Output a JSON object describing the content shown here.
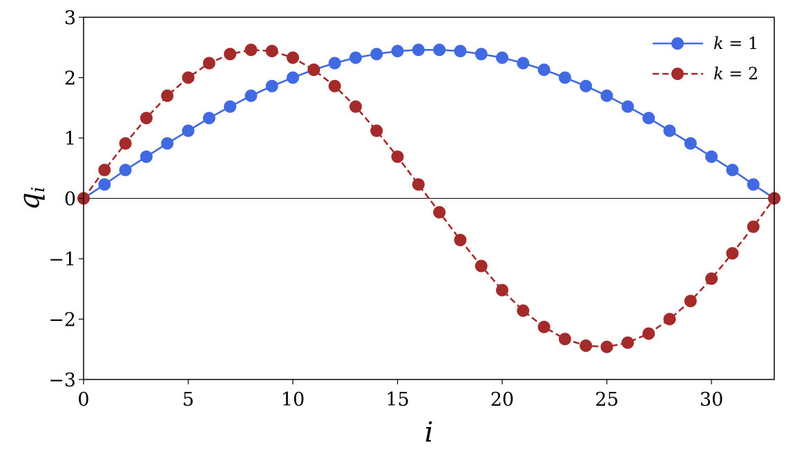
{
  "chart_data": {
    "type": "line",
    "xlabel": "i",
    "ylabel": "q_i",
    "ylabel_main": "q",
    "ylabel_sub": "i",
    "xlim": [
      0,
      33
    ],
    "ylim": [
      -3,
      3
    ],
    "xticks": [
      0,
      5,
      10,
      15,
      20,
      25,
      30
    ],
    "yticks": [
      -3,
      -2,
      -1,
      0,
      1,
      2,
      3
    ],
    "ytick_labels": [
      "−3",
      "−2",
      "−1",
      "0",
      "1",
      "2",
      "3"
    ],
    "grid": false,
    "zero_line": true,
    "legend_placement": "top-right",
    "x": [
      0,
      1,
      2,
      3,
      4,
      5,
      6,
      7,
      8,
      9,
      10,
      11,
      12,
      13,
      14,
      15,
      16,
      17,
      18,
      19,
      20,
      21,
      22,
      23,
      24,
      25,
      26,
      27,
      28,
      29,
      30,
      31,
      32,
      33
    ],
    "series": [
      {
        "name": "k = 1",
        "legend_var": "k",
        "legend_value": "1",
        "color": "#4169e1",
        "line_style": "solid",
        "values": [
          0,
          0.23,
          0.47,
          0.69,
          0.91,
          1.12,
          1.33,
          1.52,
          1.7,
          1.86,
          2.0,
          2.13,
          2.24,
          2.33,
          2.39,
          2.44,
          2.46,
          2.46,
          2.44,
          2.39,
          2.33,
          2.24,
          2.13,
          2.0,
          1.86,
          1.7,
          1.52,
          1.33,
          1.12,
          0.91,
          0.69,
          0.47,
          0.23,
          0
        ]
      },
      {
        "name": "k = 2",
        "legend_var": "k",
        "legend_value": "2",
        "color": "#a52a2a",
        "line_style": "dashed",
        "values": [
          0,
          0.47,
          0.91,
          1.33,
          1.7,
          2.0,
          2.24,
          2.39,
          2.46,
          2.44,
          2.33,
          2.13,
          1.86,
          1.52,
          1.12,
          0.69,
          0.23,
          -0.23,
          -0.69,
          -1.12,
          -1.52,
          -1.86,
          -2.13,
          -2.33,
          -2.44,
          -2.46,
          -2.39,
          -2.24,
          -2.0,
          -1.7,
          -1.33,
          -0.91,
          -0.47,
          0
        ]
      }
    ]
  }
}
